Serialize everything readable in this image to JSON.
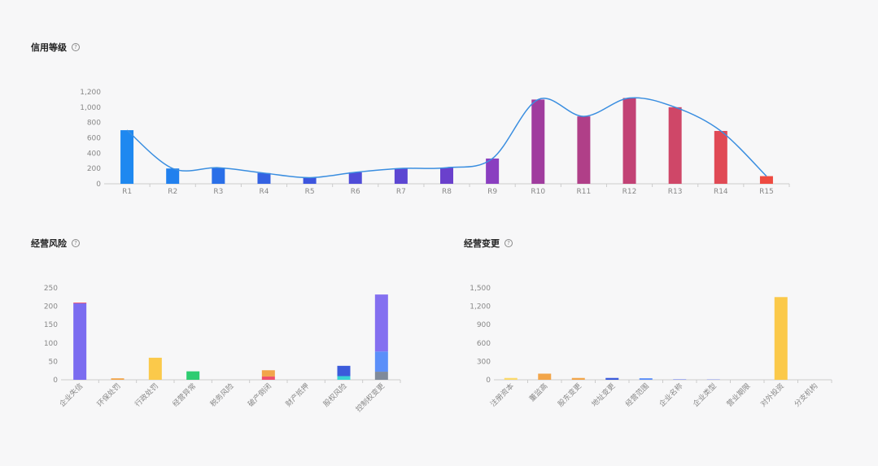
{
  "sections": {
    "credit": {
      "title": "信用等级",
      "info_icon": "question-circle-icon"
    },
    "risk": {
      "title": "经营风险",
      "info_icon": "question-circle-icon"
    },
    "change": {
      "title": "经营变更",
      "info_icon": "question-circle-icon"
    }
  },
  "chart_data": [
    {
      "type": "bar",
      "id": "credit",
      "categories": [
        "R1",
        "R2",
        "R3",
        "R4",
        "R5",
        "R6",
        "R7",
        "R8",
        "R9",
        "R10",
        "R11",
        "R12",
        "R13",
        "R14",
        "R15"
      ],
      "values": [
        700,
        200,
        210,
        140,
        80,
        150,
        200,
        210,
        330,
        1100,
        880,
        1120,
        1000,
        690,
        100
      ],
      "ylim": [
        0,
        1200
      ],
      "yticks": [
        0,
        200,
        400,
        600,
        800,
        1000,
        1200
      ],
      "ytick_labels": [
        "0",
        "200",
        "400",
        "600",
        "800",
        "1,000",
        "1,200"
      ],
      "overlay_line": true,
      "colors": [
        "#1e88f0",
        "#2180ee",
        "#2a6fe8",
        "#3462e2",
        "#3d55de",
        "#4f4cd8",
        "#5c46d2",
        "#6a40cc",
        "#8a3ec0",
        "#a03c9e",
        "#b03f88",
        "#c24275",
        "#cf4768",
        "#e04a55",
        "#ee4a40"
      ],
      "line_color": "#3a8ee0",
      "grid": false
    },
    {
      "type": "bar",
      "id": "risk",
      "stacked": true,
      "categories": [
        "企业失信",
        "环保处罚",
        "行政处罚",
        "经营异常",
        "税务风险",
        "破产倒闭",
        "财产抵押",
        "股权风险",
        "控制权变更"
      ],
      "series": [
        {
          "color": "#7b6cf0",
          "values": [
            208,
            0,
            0,
            0,
            0,
            0,
            0,
            0,
            0
          ]
        },
        {
          "color": "#f0506e",
          "values": [
            2,
            0,
            0,
            0,
            0,
            9,
            0,
            0,
            0
          ]
        },
        {
          "color": "#f2a54a",
          "values": [
            0,
            4,
            0,
            0,
            0,
            17,
            0,
            0,
            0
          ]
        },
        {
          "color": "#fbc94a",
          "values": [
            0,
            0,
            60,
            0,
            0,
            0,
            0,
            0,
            0
          ]
        },
        {
          "color": "#2ecc71",
          "values": [
            0,
            0,
            0,
            23,
            0,
            0,
            0,
            0,
            0
          ]
        },
        {
          "color": "#38d4d4",
          "values": [
            0,
            0,
            0,
            0,
            0,
            0,
            0,
            10,
            0
          ]
        },
        {
          "color": "#3b5bdb",
          "values": [
            0,
            0,
            0,
            0,
            0,
            0,
            0,
            28,
            0
          ]
        },
        {
          "color": "#7f8a9a",
          "values": [
            0,
            0,
            0,
            0,
            0,
            0,
            0,
            0,
            22
          ]
        },
        {
          "color": "#5b8ff9",
          "values": [
            0,
            0,
            0,
            0,
            0,
            0,
            0,
            0,
            55
          ]
        },
        {
          "color": "#8470f0",
          "values": [
            0,
            0,
            0,
            0,
            0,
            0,
            0,
            0,
            155
          ]
        }
      ],
      "ylim": [
        0,
        250
      ],
      "yticks": [
        0,
        50,
        100,
        150,
        200,
        250
      ],
      "ytick_labels": [
        "0",
        "50",
        "100",
        "150",
        "200",
        "250"
      ],
      "grid": false
    },
    {
      "type": "bar",
      "id": "change",
      "categories": [
        "注册资本",
        "董监高",
        "股东变更",
        "地址变更",
        "经营范围",
        "企业名称",
        "企业类型",
        "营业期限",
        "对外投资",
        "分支机构"
      ],
      "values": [
        30,
        100,
        30,
        30,
        25,
        10,
        10,
        0,
        1350,
        0
      ],
      "colors": [
        "#fbd96a",
        "#f2a54a",
        "#f2a54a",
        "#3b5bdb",
        "#5b8ff9",
        "#8c9aee",
        "#aab4ee",
        "#cccccc",
        "#fbc94a",
        "#cccccc"
      ],
      "ylim": [
        0,
        1500
      ],
      "yticks": [
        0,
        300,
        600,
        900,
        1200,
        1500
      ],
      "ytick_labels": [
        "0",
        "300",
        "600",
        "900",
        "1,200",
        "1,500"
      ],
      "grid": false
    }
  ]
}
